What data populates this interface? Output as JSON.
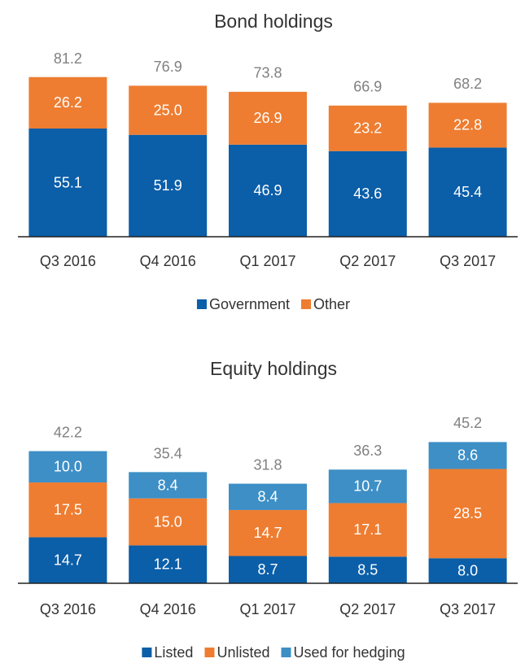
{
  "chart_data": [
    {
      "type": "stacked-bar",
      "title": "Bond holdings",
      "categories": [
        "Q3 2016",
        "Q4 2016",
        "Q1 2017",
        "Q2 2017",
        "Q3 2017"
      ],
      "series": [
        {
          "name": "Government",
          "color": "#0b5ea8",
          "values": [
            55.1,
            51.9,
            46.9,
            43.6,
            45.4
          ]
        },
        {
          "name": "Other",
          "color": "#ee7d31",
          "values": [
            26.2,
            25.0,
            26.9,
            23.2,
            22.8
          ],
          "value_labels": [
            "26.2",
            "25.0",
            "26.9",
            "23.2",
            "22.8"
          ]
        }
      ],
      "totals": [
        81.2,
        76.9,
        73.8,
        66.9,
        68.2
      ]
    },
    {
      "type": "stacked-bar",
      "title": "Equity holdings",
      "categories": [
        "Q3 2016",
        "Q4 2016",
        "Q1 2017",
        "Q2 2017",
        "Q3 2017"
      ],
      "series": [
        {
          "name": "Listed",
          "color": "#0b5ea8",
          "values": [
            14.7,
            12.1,
            8.7,
            8.5,
            8.0
          ],
          "value_labels": [
            "14.7",
            "12.1",
            "8.7",
            "8.5",
            "8.0"
          ]
        },
        {
          "name": "Unlisted",
          "color": "#ee7d31",
          "values": [
            17.5,
            15.0,
            14.7,
            17.1,
            28.5
          ],
          "value_labels": [
            "17.5",
            "15.0",
            "14.7",
            "17.1",
            "28.5"
          ]
        },
        {
          "name": "Used for hedging",
          "color": "#3d8fc6",
          "values": [
            10.0,
            8.4,
            8.4,
            10.7,
            8.6
          ],
          "value_labels": [
            "10.0",
            "8.4",
            "8.4",
            "10.7",
            "8.6"
          ]
        }
      ],
      "totals": [
        42.2,
        35.4,
        31.8,
        36.3,
        45.2
      ]
    }
  ]
}
